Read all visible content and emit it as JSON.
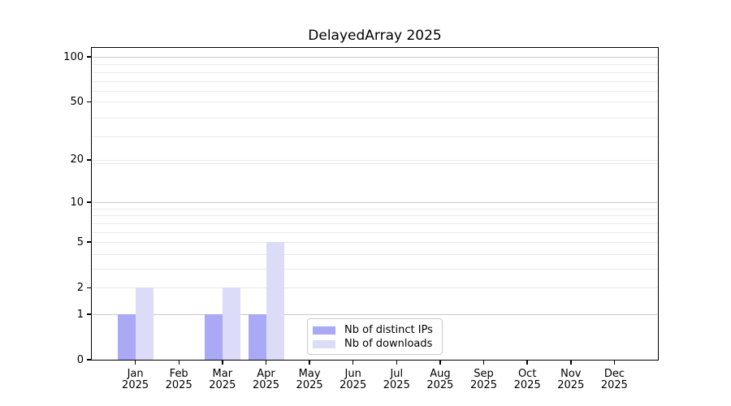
{
  "figure": {
    "background": "#ffffff"
  },
  "chart_data": {
    "type": "bar",
    "title": "DelayedArray 2025",
    "xlabel": "",
    "ylabel": "",
    "categories": [
      "Jan 2025",
      "Feb 2025",
      "Mar 2025",
      "Apr 2025",
      "May 2025",
      "Jun 2025",
      "Jul 2025",
      "Aug 2025",
      "Sep 2025",
      "Oct 2025",
      "Nov 2025",
      "Dec 2025"
    ],
    "series": [
      {
        "name": "Nb of distinct IPs",
        "color": "#a9a9f6",
        "values": [
          1,
          0,
          1,
          1,
          0,
          0,
          0,
          0,
          0,
          0,
          0,
          0
        ]
      },
      {
        "name": "Nb of downloads",
        "color": "#dcdcf8",
        "values": [
          2,
          0,
          2,
          5,
          0,
          0,
          0,
          0,
          0,
          0,
          0,
          0
        ]
      }
    ],
    "y_axis": {
      "scale": "log10(value+1)",
      "ticks": [
        0,
        1,
        2,
        5,
        10,
        20,
        50,
        100
      ],
      "top_value": 115,
      "minor_gridlines": [
        3,
        4,
        6,
        7,
        8,
        9,
        19,
        29,
        39,
        59,
        69,
        79,
        89
      ],
      "emphasized_gridlines": [
        1,
        10,
        100
      ]
    },
    "legend": {
      "position": "lower-center",
      "entries": [
        "Nb of distinct IPs",
        "Nb of downloads"
      ]
    },
    "colors": {
      "grid_minor": "#eaeaea",
      "grid_emphasized": "#c8c8c8",
      "axis": "#000000",
      "text": "#000000",
      "legend_border": "#c9c9c9",
      "legend_bg": "#ffffff"
    }
  }
}
